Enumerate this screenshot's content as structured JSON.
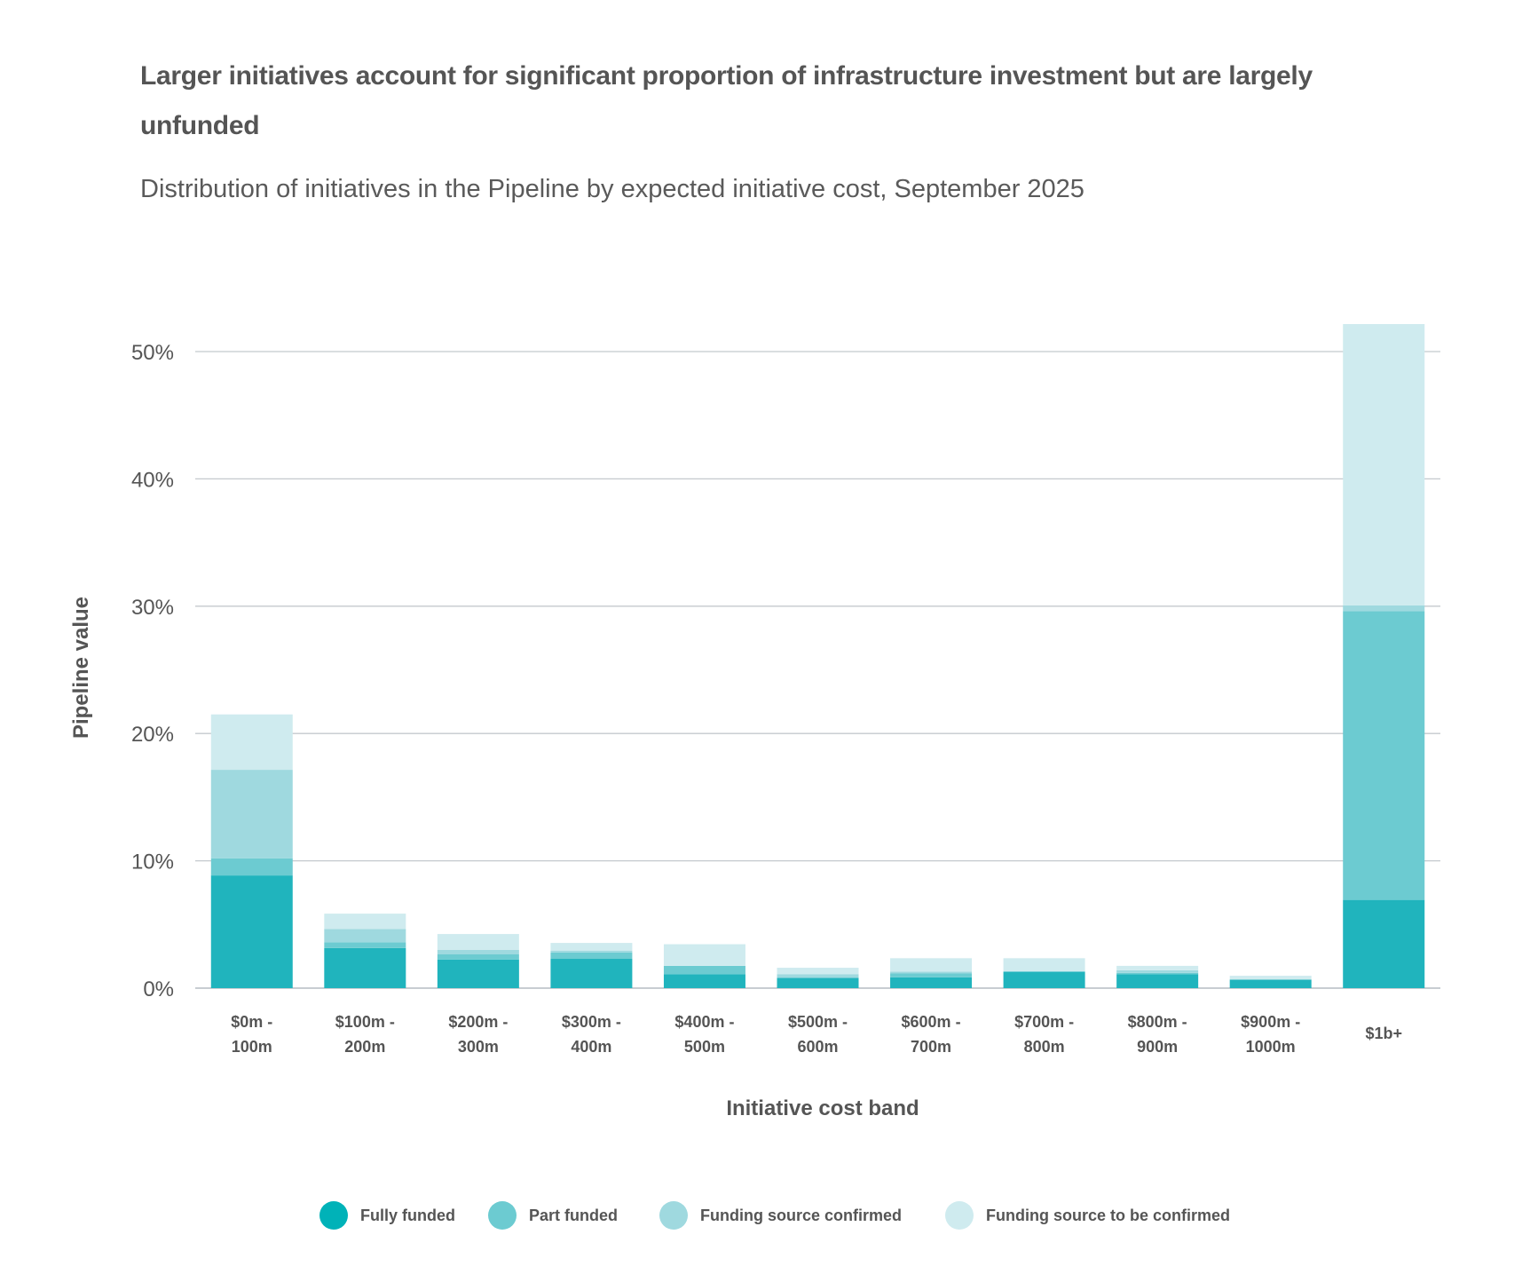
{
  "header": {
    "title": "Larger initiatives account for significant proportion of infrastructure investment but are largely unfunded",
    "subtitle": "Distribution of initiatives in the Pipeline by expected initiative cost, September 2025"
  },
  "chart_data": {
    "type": "bar",
    "stacked": true,
    "title": "Larger initiatives account for significant proportion of infrastructure investment but are largely unfunded",
    "subtitle": "Distribution of initiatives in the Pipeline by expected initiative cost, September 2025",
    "xlabel": "Initiative cost band",
    "ylabel": "Pipeline value",
    "ylim": [
      0,
      52
    ],
    "yticks": [
      0,
      10,
      20,
      30,
      40,
      50
    ],
    "ytick_labels": [
      "0%",
      "10%",
      "20%",
      "30%",
      "40%",
      "50%"
    ],
    "grid": true,
    "legend_position": "bottom",
    "categories": [
      [
        "$0m -",
        "100m"
      ],
      [
        "$100m -",
        "200m"
      ],
      [
        "$200m -",
        "300m"
      ],
      [
        "$300m -",
        "400m"
      ],
      [
        "$400m -",
        "500m"
      ],
      [
        "$500m -",
        "600m"
      ],
      [
        "$600m -",
        "700m"
      ],
      [
        "$700m -",
        "800m"
      ],
      [
        "$800m -",
        "900m"
      ],
      [
        "$900m -",
        "1000m"
      ],
      [
        "$1b+"
      ]
    ],
    "series": [
      {
        "name": "Fully funded",
        "color": "#20b4bd",
        "legend_color": "#00b2b8",
        "values": [
          8.85,
          3.15,
          2.25,
          2.3,
          1.1,
          0.8,
          0.85,
          1.3,
          1.1,
          0.67,
          6.93
        ]
      },
      {
        "name": "Part funded",
        "color": "#6ccbd1",
        "legend_color": "#6ccbd1",
        "values": [
          1.35,
          0.45,
          0.4,
          0.5,
          0.65,
          0.0,
          0.3,
          0.0,
          0.1,
          0.0,
          22.67
        ]
      },
      {
        "name": "Funding source confirmed",
        "color": "#9fd9df",
        "legend_color": "#9fd9df",
        "values": [
          6.95,
          1.05,
          0.35,
          0.15,
          0.0,
          0.3,
          0.15,
          0.0,
          0.2,
          0.0,
          0.47
        ]
      },
      {
        "name": "Funding source to be confirmed",
        "color": "#cfebef",
        "legend_color": "#cfebef",
        "values": [
          4.35,
          1.2,
          1.25,
          0.6,
          1.7,
          0.5,
          1.05,
          1.05,
          0.35,
          0.3,
          22.09
        ]
      }
    ]
  }
}
